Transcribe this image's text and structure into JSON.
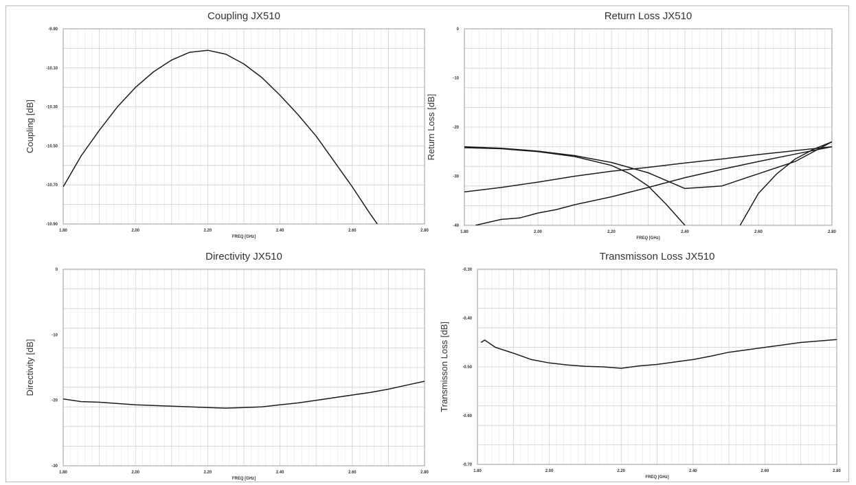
{
  "colors": {
    "line": "#1a1a1a",
    "grid": "#cfcfcf",
    "border": "#9a9a9a",
    "background": "#ffffff"
  },
  "chart_data": [
    {
      "id": "coupling",
      "type": "line",
      "title": "Coupling JX510",
      "xlabel": "FREQ [GHz]",
      "ylabel": "Coupling [dB]",
      "xlim": [
        1.8,
        2.8
      ],
      "ylim": [
        -10.9,
        -9.9
      ],
      "xticks": [
        1.8,
        1.9,
        2.0,
        2.1,
        2.2,
        2.3,
        2.4,
        2.5,
        2.6,
        2.7,
        2.8
      ],
      "xtick_labels": [
        "1.80",
        "",
        "2.00",
        "",
        "2.20",
        "",
        "2.40",
        "",
        "2.60",
        "",
        "2.80"
      ],
      "yticks": [
        -9.9,
        -10.1,
        -10.3,
        -10.5,
        -10.7,
        -10.9
      ],
      "ytick_labels": [
        "-9.90",
        "-10.10",
        "-10.30",
        "-10.50",
        "-10.70",
        "-10.90"
      ],
      "grid": true,
      "series": [
        {
          "x": [
            1.8,
            1.85,
            1.9,
            1.95,
            2.0,
            2.05,
            2.1,
            2.15,
            2.2,
            2.25,
            2.3,
            2.35,
            2.4,
            2.45,
            2.5,
            2.55,
            2.6,
            2.65,
            2.7,
            2.75
          ],
          "y": [
            -10.71,
            -10.55,
            -10.42,
            -10.3,
            -10.2,
            -10.12,
            -10.06,
            -10.02,
            -10.01,
            -10.03,
            -10.08,
            -10.15,
            -10.24,
            -10.34,
            -10.45,
            -10.58,
            -10.71,
            -10.85,
            -10.98,
            -11.11
          ]
        }
      ]
    },
    {
      "id": "return-loss",
      "type": "line",
      "title": "Return Loss JX510",
      "xlabel": "FREQ [GHz]",
      "ylabel": "Return Loss [dB]",
      "xlim": [
        1.8,
        2.8
      ],
      "ylim": [
        -40,
        0
      ],
      "xticks": [
        1.8,
        1.9,
        2.0,
        2.1,
        2.2,
        2.3,
        2.4,
        2.5,
        2.6,
        2.7,
        2.8
      ],
      "xtick_labels": [
        "1.80",
        "",
        "2.00",
        "",
        "2.20",
        "",
        "2.40",
        "",
        "2.60",
        "",
        "2.80"
      ],
      "yticks": [
        0,
        -10,
        -20,
        -30,
        -40
      ],
      "ytick_labels": [
        "0",
        "-10",
        "-20",
        "-30",
        "-40"
      ],
      "grid": true,
      "series": [
        {
          "x": [
            1.8,
            1.9,
            2.0,
            2.1,
            2.2,
            2.3,
            2.4,
            2.5,
            2.6,
            2.7,
            2.8
          ],
          "y": [
            -24.0,
            -24.3,
            -24.9,
            -25.8,
            -27.2,
            -29.3,
            -32.5,
            -32.0,
            -29.5,
            -27.0,
            -23.0
          ]
        },
        {
          "x": [
            1.8,
            1.9,
            2.0,
            2.1,
            2.2,
            2.25,
            2.3,
            2.35,
            2.4
          ],
          "y": [
            -24.2,
            -24.4,
            -25.0,
            -26.0,
            -27.8,
            -29.5,
            -32.0,
            -35.8,
            -40.0
          ]
        },
        {
          "x": [
            2.55,
            2.6,
            2.65,
            2.7,
            2.75,
            2.8
          ],
          "y": [
            -40.0,
            -33.5,
            -29.5,
            -26.5,
            -24.5,
            -23.0
          ]
        },
        {
          "x": [
            1.8,
            1.9,
            2.0,
            2.1,
            2.2,
            2.3,
            2.4,
            2.5,
            2.6,
            2.7,
            2.8
          ],
          "y": [
            -33.2,
            -32.3,
            -31.2,
            -30.0,
            -29.0,
            -28.2,
            -27.3,
            -26.5,
            -25.6,
            -24.8,
            -24.0
          ]
        },
        {
          "x": [
            1.83,
            1.9,
            1.95,
            2.0,
            2.05,
            2.1,
            2.2,
            2.3,
            2.4,
            2.5,
            2.6,
            2.7,
            2.8
          ],
          "y": [
            -40.0,
            -38.8,
            -38.5,
            -37.5,
            -36.8,
            -35.8,
            -34.2,
            -32.3,
            -30.3,
            -28.6,
            -27.0,
            -25.5,
            -24.0
          ]
        }
      ]
    },
    {
      "id": "directivity",
      "type": "line",
      "title": "Directivity JX510",
      "xlabel": "FREQ [GHz]",
      "ylabel": "Directivity [dB]",
      "xlim": [
        1.8,
        2.8
      ],
      "ylim": [
        -30,
        0
      ],
      "xticks": [
        1.8,
        1.9,
        2.0,
        2.1,
        2.2,
        2.3,
        2.4,
        2.5,
        2.6,
        2.7,
        2.8
      ],
      "xtick_labels": [
        "1.80",
        "",
        "2.00",
        "",
        "2.20",
        "",
        "2.40",
        "",
        "2.60",
        "",
        "2.80"
      ],
      "yticks": [
        0,
        -10,
        -20,
        -30
      ],
      "ytick_labels": [
        "0",
        "-10",
        "-20",
        "-30"
      ],
      "grid": true,
      "series": [
        {
          "x": [
            1.8,
            1.85,
            1.9,
            1.95,
            2.0,
            2.05,
            2.1,
            2.15,
            2.2,
            2.25,
            2.3,
            2.35,
            2.4,
            2.45,
            2.5,
            2.55,
            2.6,
            2.65,
            2.7,
            2.75,
            2.8
          ],
          "y": [
            -19.8,
            -20.2,
            -20.3,
            -20.5,
            -20.7,
            -20.8,
            -20.9,
            -21.0,
            -21.1,
            -21.2,
            -21.1,
            -21.0,
            -20.7,
            -20.4,
            -20.0,
            -19.6,
            -19.2,
            -18.8,
            -18.3,
            -17.7,
            -17.1
          ]
        }
      ]
    },
    {
      "id": "transmission-loss",
      "type": "line",
      "title": "Transmisson Loss JX510",
      "xlabel": "FREQ [GHz]",
      "ylabel": "Transmisson Loss [dB]",
      "xlim": [
        1.8,
        2.8
      ],
      "ylim": [
        -0.7,
        -0.3
      ],
      "xticks": [
        1.8,
        1.9,
        2.0,
        2.1,
        2.2,
        2.3,
        2.4,
        2.5,
        2.6,
        2.7,
        2.8
      ],
      "xtick_labels": [
        "1.80",
        "",
        "2.00",
        "",
        "2.20",
        "",
        "2.40",
        "",
        "2.60",
        "",
        "2.80"
      ],
      "yticks": [
        -0.3,
        -0.4,
        -0.5,
        -0.6,
        -0.7
      ],
      "ytick_labels": [
        "-0.30",
        "-0.40",
        "-0.50",
        "-0.60",
        "-0.70"
      ],
      "grid": true,
      "series": [
        {
          "x": [
            1.81,
            1.82,
            1.85,
            1.9,
            1.95,
            2.0,
            2.05,
            2.1,
            2.15,
            2.2,
            2.25,
            2.3,
            2.35,
            2.4,
            2.45,
            2.5,
            2.55,
            2.6,
            2.65,
            2.7,
            2.75,
            2.8
          ],
          "y": [
            -0.45,
            -0.445,
            -0.46,
            -0.472,
            -0.485,
            -0.492,
            -0.496,
            -0.499,
            -0.5,
            -0.503,
            -0.498,
            -0.495,
            -0.49,
            -0.485,
            -0.478,
            -0.47,
            -0.465,
            -0.46,
            -0.455,
            -0.45,
            -0.447,
            -0.444
          ]
        }
      ]
    }
  ]
}
